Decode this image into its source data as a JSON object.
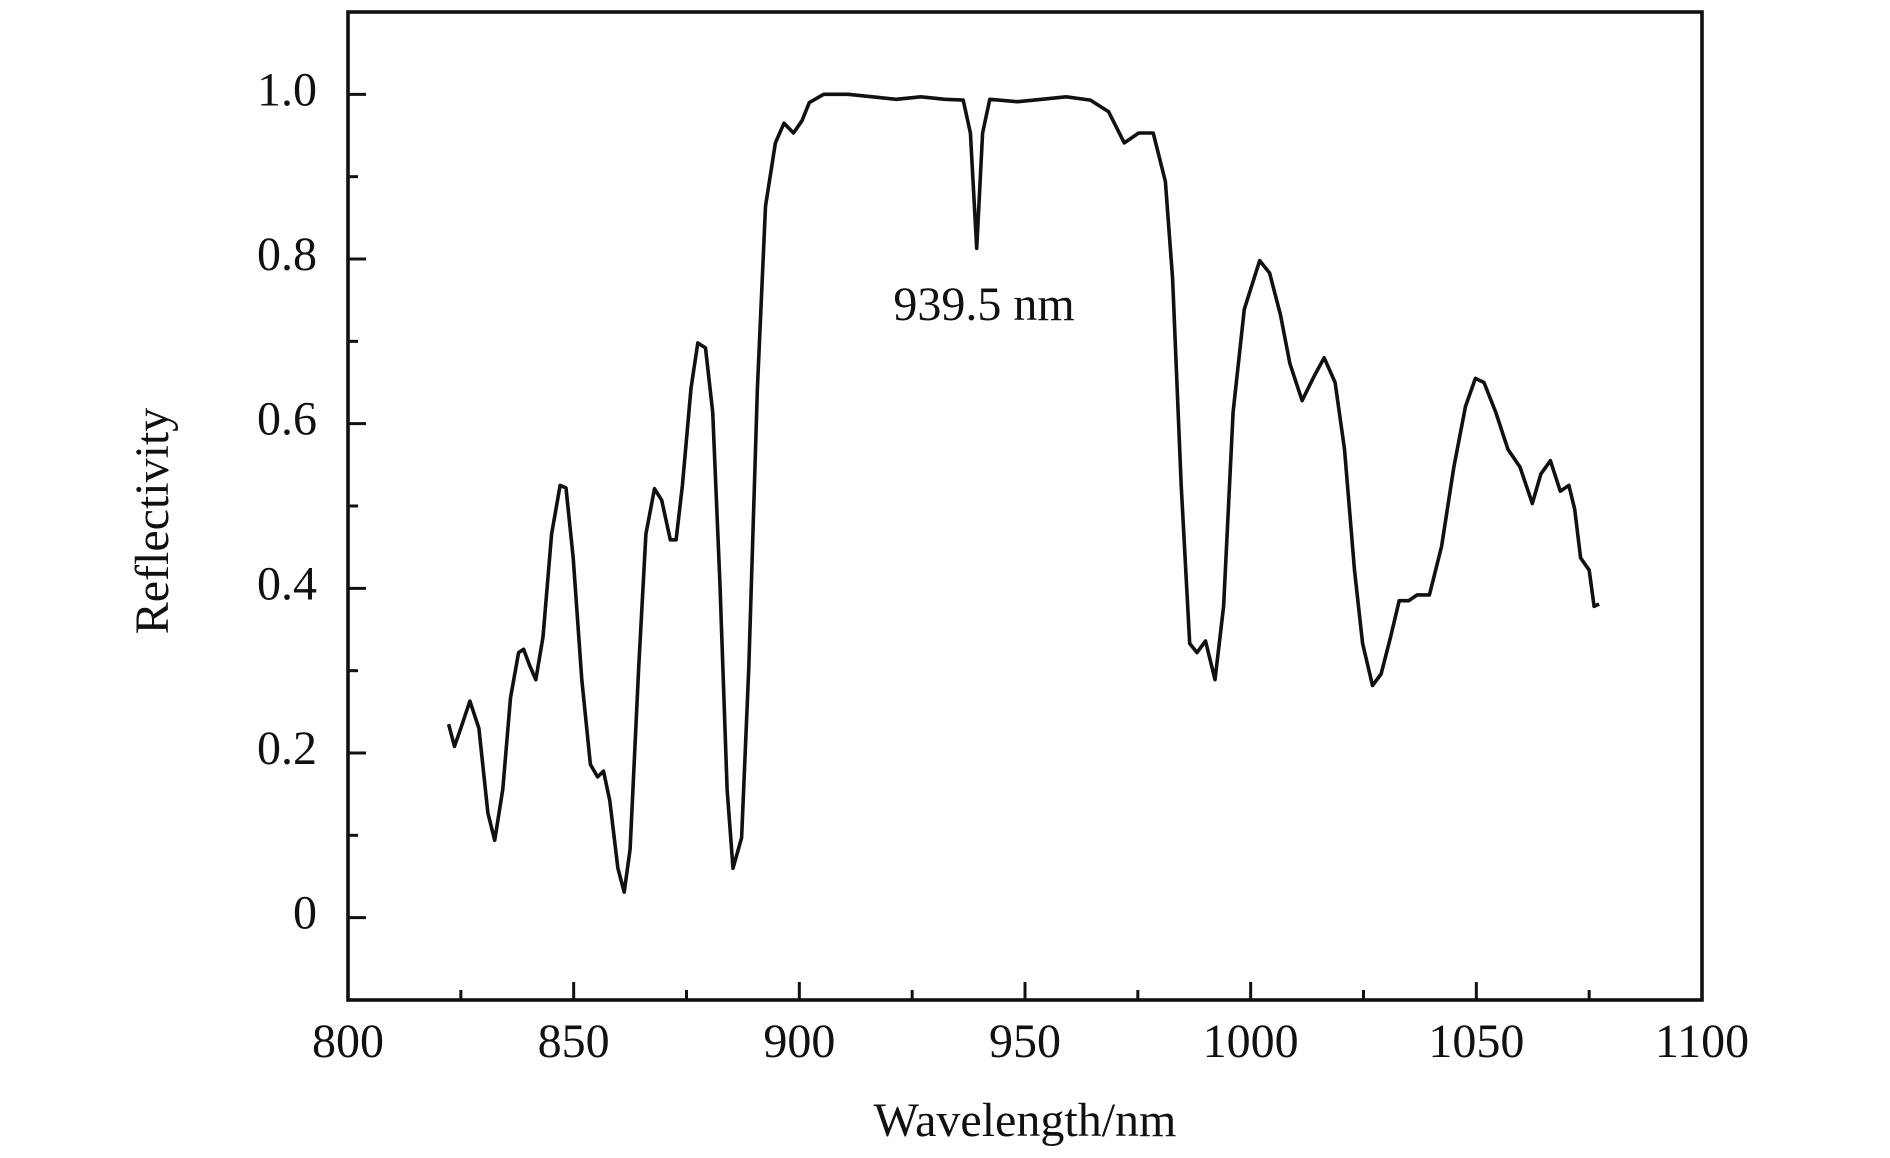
{
  "chart_data": {
    "type": "line",
    "x_label": "Wavelength/nm",
    "y_label": "Reflectivity",
    "annotation": "939.5 nm",
    "xlim": [
      800,
      1100
    ],
    "ylim": [
      -0.1,
      1.1
    ],
    "xticks": [
      800,
      850,
      900,
      950,
      1000,
      1050,
      1100
    ],
    "xminorticks": [
      825,
      875,
      925,
      975,
      1025,
      1075
    ],
    "yticks": [
      0,
      0.2,
      0.4,
      0.6,
      0.8,
      {
        "value": 1,
        "label": "1.0"
      }
    ],
    "yminorticks": [
      0.1,
      0.3,
      0.5,
      0.7,
      0.9
    ],
    "grid": false,
    "series": [
      {
        "color": "#111111",
        "x": [
          822.3,
          823.6,
          825,
          827,
          829,
          831,
          832.5,
          834.3,
          836,
          837.8,
          838.9,
          840.2,
          841.6,
          843.2,
          845.1,
          847,
          848.3,
          849.9,
          851.8,
          853.7,
          855.3,
          856.6,
          858,
          859.8,
          861.2,
          862.5,
          864.4,
          866,
          867.9,
          869.5,
          871.4,
          872.7,
          874.1,
          876,
          877.5,
          879.2,
          880.8,
          882.4,
          884,
          885.3,
          887.2,
          888.8,
          890.7,
          892.5,
          894.7,
          896.6,
          898.7,
          900.6,
          902.2,
          905.4,
          910.8,
          916.2,
          921.5,
          926.9,
          932.3,
          936.3,
          937.9,
          939.3,
          940.6,
          942.2,
          948.4,
          953.7,
          959.1,
          964.5,
          968.5,
          972,
          975.2,
          978.4,
          981.1,
          982.7,
          984.6,
          986.5,
          988.1,
          990,
          992.1,
          994,
          996.1,
          998.6,
          1002,
          1004.2,
          1006.6,
          1008.7,
          1011.4,
          1014.1,
          1016.3,
          1018.7,
          1020.8,
          1023,
          1024.8,
          1027,
          1028.9,
          1031,
          1032.9,
          1035,
          1036.9,
          1039.6,
          1042.3,
          1045,
          1047.6,
          1049.8,
          1051.7,
          1054.3,
          1057,
          1059.7,
          1062.4,
          1064.3,
          1066.4,
          1068.6,
          1070.5,
          1071.8,
          1073.1,
          1075,
          1076.1,
          1077.2
        ],
        "values": [
          0.235,
          0.208,
          0.23,
          0.263,
          0.23,
          0.127,
          0.094,
          0.156,
          0.267,
          0.322,
          0.326,
          0.307,
          0.289,
          0.341,
          0.466,
          0.525,
          0.522,
          0.437,
          0.289,
          0.186,
          0.171,
          0.178,
          0.142,
          0.06,
          0.031,
          0.083,
          0.304,
          0.466,
          0.521,
          0.507,
          0.459,
          0.459,
          0.525,
          0.643,
          0.698,
          0.692,
          0.614,
          0.407,
          0.156,
          0.06,
          0.097,
          0.304,
          0.643,
          0.864,
          0.941,
          0.965,
          0.953,
          0.968,
          0.99,
          1.0,
          1.0,
          0.997,
          0.994,
          0.997,
          0.994,
          0.993,
          0.953,
          0.813,
          0.953,
          0.994,
          0.991,
          0.994,
          0.997,
          0.993,
          0.979,
          0.941,
          0.953,
          0.953,
          0.894,
          0.776,
          0.525,
          0.333,
          0.322,
          0.336,
          0.289,
          0.378,
          0.614,
          0.739,
          0.798,
          0.783,
          0.732,
          0.673,
          0.628,
          0.658,
          0.68,
          0.65,
          0.569,
          0.422,
          0.333,
          0.282,
          0.296,
          0.341,
          0.385,
          0.385,
          0.392,
          0.392,
          0.451,
          0.547,
          0.621,
          0.655,
          0.65,
          0.614,
          0.569,
          0.547,
          0.503,
          0.539,
          0.555,
          0.518,
          0.525,
          0.496,
          0.437,
          0.422,
          0.378,
          0.381
        ]
      }
    ]
  }
}
